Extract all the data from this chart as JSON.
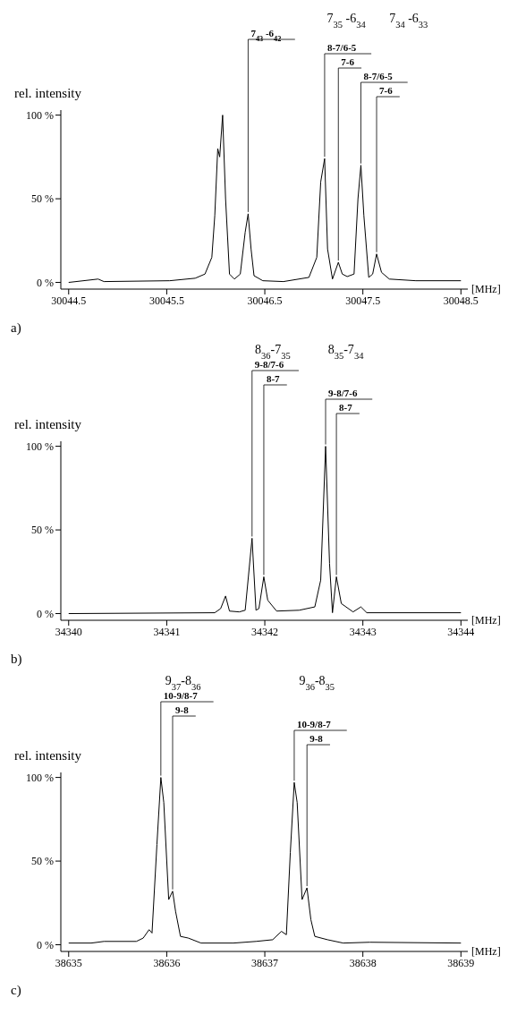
{
  "chart_data": [
    {
      "type": "line",
      "title": "a)",
      "xlabel": "[MHz]",
      "ylabel": "rel. intensity",
      "color": "#000000",
      "x": [
        30044.5,
        30044.8,
        30044.86,
        30045.53,
        30045.79,
        30045.89,
        30045.96,
        30045.99,
        30046.02,
        30046.04,
        30046.07,
        30046.1,
        30046.14,
        30046.19,
        30046.25,
        30046.3,
        30046.33,
        30046.36,
        30046.39,
        30046.48,
        30046.69,
        30046.95,
        30047.03,
        30047.07,
        30047.11,
        30047.14,
        30047.19,
        30047.25,
        30047.29,
        30047.34,
        30047.41,
        30047.45,
        30047.48,
        30047.51,
        30047.56,
        30047.6,
        30047.64,
        30047.69,
        30047.77,
        30048.04,
        30048.5
      ],
      "values": [
        0,
        2,
        0.5,
        1,
        2.5,
        5,
        15,
        40,
        80,
        75,
        100,
        50,
        5,
        2,
        5,
        30,
        41,
        20,
        4,
        1,
        0.5,
        3,
        15,
        60,
        74,
        20,
        2,
        12,
        5,
        3.5,
        5,
        50,
        70,
        40,
        3,
        5,
        17,
        6,
        2,
        1,
        1
      ],
      "xlim": [
        30044.42,
        30048.57
      ],
      "ylim": [
        -4,
        103
      ],
      "xticks": [
        30044.5,
        30045.5,
        30046.5,
        30047.5,
        30048.5
      ],
      "yticks": [
        {
          "value": 0,
          "label": "0 %"
        },
        {
          "value": 50,
          "label": "50 %"
        },
        {
          "value": 100,
          "label": "100 %"
        }
      ],
      "annotations": [
        {
          "text": "7$_{43}$ -6$_{42}$",
          "x": 30046.33,
          "y": 41
        },
        "7$_{35}$ -6$_{34}$",
        {
          "text": "8-7/6-5",
          "x": 30047.11,
          "y": 74
        },
        {
          "text": "7-6",
          "x": 30047.25,
          "y": 12
        },
        "7$_{34}$ -6$_{33}$",
        {
          "text": "8-7/6-5",
          "x": 30047.48,
          "y": 70
        },
        {
          "text": "7-6",
          "x": 30047.64,
          "y": 17
        }
      ]
    },
    {
      "type": "line",
      "title": "b)",
      "xlabel": "[MHz]",
      "ylabel": "rel. intensity",
      "color": "#000000",
      "x": [
        34340,
        34341.49,
        34341.55,
        34341.6,
        34341.64,
        34341.74,
        34341.8,
        34341.87,
        34341.91,
        34341.94,
        34341.99,
        34342.03,
        34342.12,
        34342.35,
        34342.51,
        34342.57,
        34342.62,
        34342.66,
        34342.69,
        34342.73,
        34342.78,
        34342.9,
        34342.98,
        34343.04,
        34344
      ],
      "values": [
        0,
        0.5,
        3,
        10.5,
        1.5,
        1,
        2,
        45,
        2,
        3,
        22,
        8,
        1.5,
        2,
        4,
        20,
        100,
        30,
        0.5,
        22,
        6,
        1,
        4,
        0.5,
        0.5
      ],
      "xlim": [
        34339.92,
        34344.07
      ],
      "ylim": [
        -4,
        103
      ],
      "xticks": [
        34340,
        34341,
        34342,
        34343,
        34344
      ],
      "yticks": [
        {
          "value": 0,
          "label": "0 %"
        },
        {
          "value": 50,
          "label": "50 %"
        },
        {
          "value": 100,
          "label": "100 %"
        }
      ],
      "annotations": [
        "8$_{36}$-7$_{35}$",
        {
          "text": "9-8/7-6",
          "x": 34341.87,
          "y": 45
        },
        {
          "text": "8-7",
          "x": 34341.99,
          "y": 22
        },
        "8$_{35}$-7$_{34}$",
        {
          "text": "9-8/7-6",
          "x": 34342.62,
          "y": 100
        },
        {
          "text": "8-7",
          "x": 34342.73,
          "y": 22
        }
      ]
    },
    {
      "type": "line",
      "title": "c)",
      "xlabel": "[MHz]",
      "ylabel": "rel. intensity",
      "color": "#000000",
      "x": [
        38635,
        38635.23,
        38635.36,
        38635.69,
        38635.76,
        38635.82,
        38635.85,
        38635.9,
        38635.94,
        38635.97,
        38636.02,
        38636.06,
        38636.09,
        38636.14,
        38636.22,
        38636.35,
        38636.68,
        38636.91,
        38637.08,
        38637.17,
        38637.22,
        38637.26,
        38637.3,
        38637.33,
        38637.38,
        38637.43,
        38637.47,
        38637.51,
        38637.64,
        38637.8,
        38638.07,
        38639
      ],
      "values": [
        1,
        1,
        2,
        2,
        4,
        9,
        7,
        60,
        100,
        85,
        27,
        32,
        20,
        5,
        4,
        1,
        1,
        2,
        3,
        8,
        6,
        55,
        97,
        85,
        27,
        34,
        15,
        5,
        3,
        1,
        1.5,
        1
      ],
      "xlim": [
        38634.92,
        38639.07
      ],
      "ylim": [
        -4,
        103
      ],
      "xticks": [
        38635,
        38636,
        38637,
        38638,
        38639
      ],
      "yticks": [
        {
          "value": 0,
          "label": "0 %"
        },
        {
          "value": 50,
          "label": "50 %"
        },
        {
          "value": 100,
          "label": "100 %"
        }
      ],
      "annotations": [
        "9$_{37}$-8$_{36}$",
        {
          "text": "10-9/8-7",
          "x": 38635.94,
          "y": 100
        },
        {
          "text": "9-8",
          "x": 38636.06,
          "y": 32
        },
        "9$_{36}$-8$_{35}$",
        {
          "text": "10-9/8-7",
          "x": 38637.3,
          "y": 97
        },
        {
          "text": "9-8",
          "x": 38637.43,
          "y": 34
        }
      ]
    }
  ]
}
